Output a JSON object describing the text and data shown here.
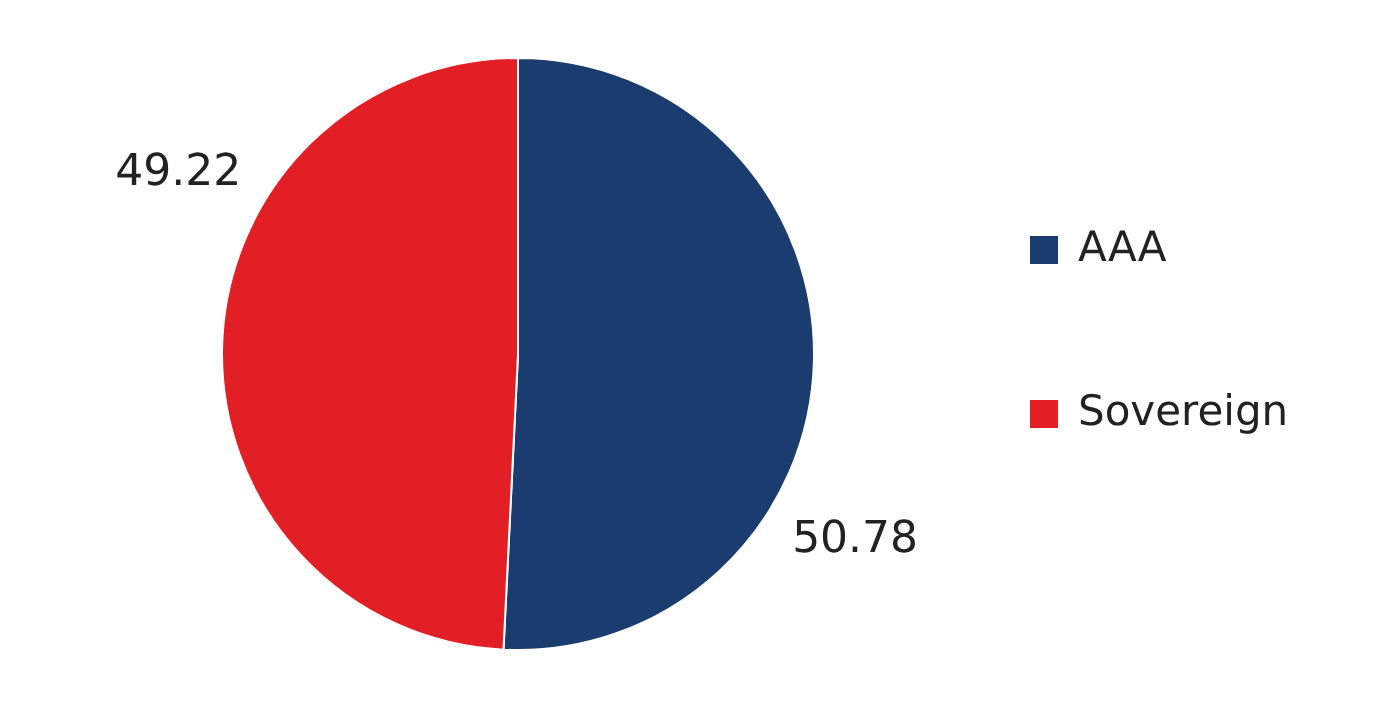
{
  "chart_data": {
    "type": "pie",
    "categories": [
      "AAA",
      "Sovereign"
    ],
    "values": [
      50.78,
      49.22
    ],
    "colors": [
      "#1a3c6e",
      "#e31f26"
    ],
    "data_labels": true,
    "legend": "right"
  }
}
